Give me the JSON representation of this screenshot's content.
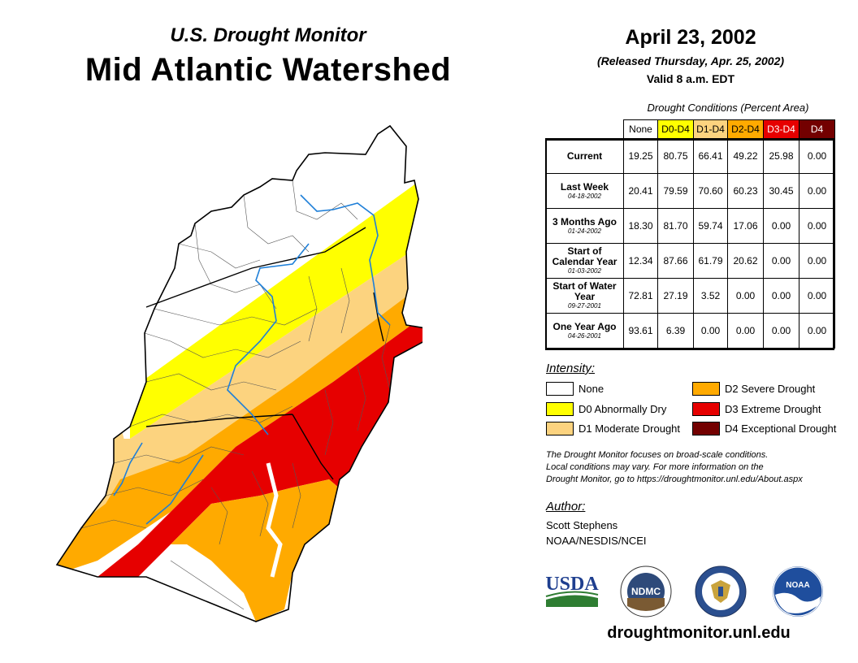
{
  "header": {
    "subtitle": "U.S. Drought Monitor",
    "title": "Mid Atlantic Watershed",
    "date": "April 23, 2002",
    "released": "(Released Thursday, Apr. 25, 2002)",
    "valid": "Valid 8 a.m. EDT"
  },
  "table": {
    "caption": "Drought Conditions (Percent Area)",
    "columns": [
      "None",
      "D0-D4",
      "D1-D4",
      "D2-D4",
      "D3-D4",
      "D4"
    ],
    "column_colors": [
      "#ffffff",
      "#ffff00",
      "#fcd37f",
      "#ffaa00",
      "#e60000",
      "#730000"
    ],
    "rows": [
      {
        "label": "Current",
        "date": "",
        "values": [
          "19.25",
          "80.75",
          "66.41",
          "49.22",
          "25.98",
          "0.00"
        ]
      },
      {
        "label": "Last Week",
        "date": "04-18-2002",
        "values": [
          "20.41",
          "79.59",
          "70.60",
          "60.23",
          "30.45",
          "0.00"
        ]
      },
      {
        "label": "3 Months Ago",
        "date": "01-24-2002",
        "values": [
          "18.30",
          "81.70",
          "59.74",
          "17.06",
          "0.00",
          "0.00"
        ]
      },
      {
        "label": "Start of Calendar Year",
        "date": "01-03-2002",
        "values": [
          "12.34",
          "87.66",
          "61.79",
          "20.62",
          "0.00",
          "0.00"
        ]
      },
      {
        "label": "Start of Water Year",
        "date": "09-27-2001",
        "values": [
          "72.81",
          "27.19",
          "3.52",
          "0.00",
          "0.00",
          "0.00"
        ]
      },
      {
        "label": "One Year Ago",
        "date": "04-26-2001",
        "values": [
          "93.61",
          "6.39",
          "0.00",
          "0.00",
          "0.00",
          "0.00"
        ]
      }
    ]
  },
  "legend": {
    "title": "Intensity:",
    "items": [
      {
        "label": "None",
        "color": "#ffffff"
      },
      {
        "label": "D0 Abnormally Dry",
        "color": "#ffff00"
      },
      {
        "label": "D1 Moderate Drought",
        "color": "#fcd37f"
      },
      {
        "label": "D2 Severe Drought",
        "color": "#ffaa00"
      },
      {
        "label": "D3 Extreme Drought",
        "color": "#e60000"
      },
      {
        "label": "D4 Exceptional Drought",
        "color": "#730000"
      }
    ]
  },
  "note": {
    "line1": "The Drought Monitor focuses on broad-scale conditions.",
    "line2": "Local conditions may vary. For more information on the",
    "line3": "Drought Monitor, go to https://droughtmonitor.unl.edu/About.aspx"
  },
  "author": {
    "heading": "Author:",
    "name": "Scott Stephens",
    "org": "NOAA/NESDIS/NCEI"
  },
  "logos": {
    "usda": "USDA",
    "ndmc": "NDMC",
    "noaa": "NOAA"
  },
  "footer": {
    "url": "droughtmonitor.unl.edu"
  },
  "colors": {
    "none": "#ffffff",
    "d0": "#ffff00",
    "d1": "#fcd37f",
    "d2": "#ffaa00",
    "d3": "#e60000",
    "d4": "#730000",
    "river": "#1e7fd8"
  }
}
